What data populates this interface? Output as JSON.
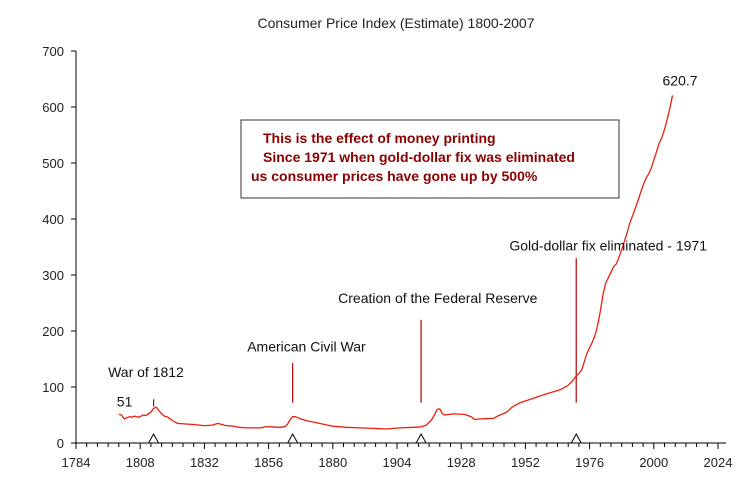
{
  "chart_data": {
    "type": "line",
    "title": "Consumer Price Index (Estimate) 1800-2007",
    "xlabel": "",
    "ylabel": "",
    "xlim": [
      1784,
      2024
    ],
    "ylim": [
      0,
      700
    ],
    "xticks": [
      1784,
      1808,
      1832,
      1856,
      1880,
      1904,
      1928,
      1952,
      1976,
      2000,
      2024
    ],
    "yticks": [
      0,
      100,
      200,
      300,
      400,
      500,
      600,
      700
    ],
    "grid": false,
    "line_color": "#e8200c",
    "series": [
      {
        "x": [
          1800,
          1801,
          1802,
          1803,
          1804,
          1805,
          1806,
          1807,
          1808,
          1809,
          1810,
          1811,
          1812,
          1813,
          1814,
          1815,
          1816,
          1817,
          1818,
          1819,
          1820,
          1822,
          1825,
          1828,
          1830,
          1832,
          1835,
          1837,
          1840,
          1843,
          1845,
          1848,
          1850,
          1853,
          1855,
          1857,
          1860,
          1862,
          1863,
          1864,
          1865,
          1866,
          1868,
          1870,
          1873,
          1875,
          1878,
          1880,
          1885,
          1890,
          1895,
          1900,
          1905,
          1910,
          1913,
          1915,
          1917,
          1918,
          1919,
          1920,
          1921,
          1922,
          1925,
          1929,
          1930,
          1932,
          1933,
          1935,
          1940,
          1942,
          1945,
          1947,
          1950,
          1955,
          1960,
          1965,
          1968,
          1970,
          1971,
          1972,
          1973,
          1974,
          1975,
          1976,
          1977,
          1978,
          1979,
          1980,
          1981,
          1982,
          1983,
          1984,
          1985,
          1986,
          1987,
          1988,
          1989,
          1990,
          1991,
          1992,
          1993,
          1994,
          1995,
          1996,
          1997,
          1998,
          1999,
          2000,
          2001,
          2002,
          2003,
          2004,
          2005,
          2006,
          2007
        ],
        "y": [
          51,
          50,
          43,
          45,
          47,
          46,
          48,
          46,
          47,
          50,
          49,
          52,
          55,
          62,
          64,
          58,
          52,
          48,
          47,
          44,
          40,
          35,
          34,
          33,
          32,
          31,
          32,
          35,
          31,
          30,
          28,
          27,
          27,
          27,
          29,
          29,
          28,
          29,
          33,
          41,
          47,
          47,
          43,
          40,
          37,
          35,
          32,
          30,
          28,
          27,
          26,
          25,
          27,
          28,
          29,
          32,
          42,
          50,
          60,
          61,
          52,
          50,
          52,
          51,
          50,
          46,
          42,
          43,
          44,
          49,
          55,
          64,
          72,
          80,
          88,
          95,
          103,
          113,
          120,
          124,
          130,
          145,
          160,
          170,
          180,
          192,
          210,
          235,
          265,
          285,
          295,
          305,
          315,
          320,
          332,
          345,
          360,
          375,
          392,
          405,
          418,
          432,
          446,
          460,
          472,
          480,
          490,
          505,
          520,
          535,
          545,
          560,
          578,
          598,
          620.7
        ]
      }
    ],
    "end_label": "620.7",
    "start_label": "51",
    "events": [
      {
        "name": "War of 1812",
        "year": 1813,
        "text_year": 1796,
        "text_value": 118,
        "line_from": 65,
        "line_to": 78
      },
      {
        "name": "American Civil War",
        "year": 1865,
        "text_year": 1848,
        "text_value": 163,
        "line_from": 72,
        "line_to": 143
      },
      {
        "name": "Creation of the Federal Reserve",
        "year": 1913,
        "text_year": 1882,
        "text_value": 250,
        "line_from": 72,
        "line_to": 220
      },
      {
        "name": "Gold-dollar fix eliminated - 1971",
        "year": 1971,
        "text_year": 1946,
        "text_value": 344,
        "line_from": 72,
        "line_to": 330
      }
    ],
    "note": {
      "lines": [
        "This is the effect of money printing",
        "Since 1971 when gold-dollar fix was eliminated",
        "us consumer prices have gone up by 500%"
      ]
    }
  }
}
